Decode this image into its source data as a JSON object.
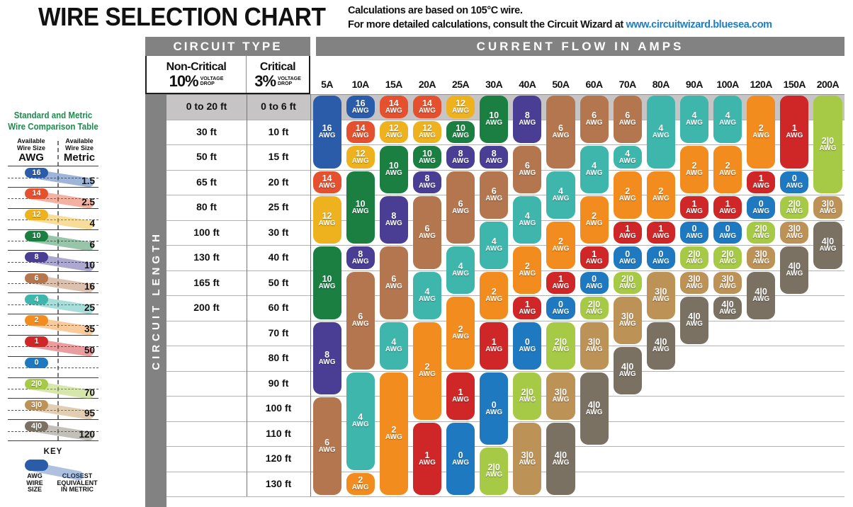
{
  "header": {
    "title": "WIRE SELECTION CHART",
    "note_line1": "Calculations are based on 105°C wire.",
    "note_line2": "For more detailed calculations, consult the Circuit Wizard at",
    "link": "www.circuitwizard.bluesea.com"
  },
  "circuit_type": {
    "header": "CIRCUIT TYPE",
    "non_critical": {
      "label": "Non-Critical",
      "pct": "10%",
      "drop": "VOLTAGE\nDROP"
    },
    "critical": {
      "label": "Critical",
      "pct": "3%",
      "drop": "VOLTAGE\nDROP"
    }
  },
  "current_flow_header": "CURRENT FLOW IN AMPS",
  "circuit_length_label": "CIRCUIT LENGTH",
  "chart_data": {
    "type": "table",
    "title": "WIRE SELECTION CHART",
    "x_header": "CURRENT FLOW IN AMPS",
    "y_header": "CIRCUIT LENGTH",
    "length_rows": [
      {
        "nc": "0 to 20 ft",
        "cr": "0 to 6 ft"
      },
      {
        "nc": "30 ft",
        "cr": "10 ft"
      },
      {
        "nc": "50 ft",
        "cr": "15 ft"
      },
      {
        "nc": "65 ft",
        "cr": "20 ft"
      },
      {
        "nc": "80 ft",
        "cr": "25 ft"
      },
      {
        "nc": "100 ft",
        "cr": "30 ft"
      },
      {
        "nc": "130 ft",
        "cr": "40 ft"
      },
      {
        "nc": "165 ft",
        "cr": "50 ft"
      },
      {
        "nc": "200 ft",
        "cr": "60 ft"
      },
      {
        "nc": "",
        "cr": "70 ft"
      },
      {
        "nc": "",
        "cr": "80 ft"
      },
      {
        "nc": "",
        "cr": "90 ft"
      },
      {
        "nc": "",
        "cr": "100 ft"
      },
      {
        "nc": "",
        "cr": "110 ft"
      },
      {
        "nc": "",
        "cr": "120 ft"
      },
      {
        "nc": "",
        "cr": "130 ft"
      }
    ],
    "columns": [
      {
        "amp": "5A",
        "segments": [
          {
            "awg": "16",
            "span": 3
          },
          {
            "awg": "14",
            "span": 1
          },
          {
            "awg": "12",
            "span": 2
          },
          {
            "awg": "10",
            "span": 3
          },
          {
            "awg": "8",
            "span": 3
          },
          {
            "awg": "6",
            "span": 4
          }
        ]
      },
      {
        "amp": "10A",
        "segments": [
          {
            "awg": "16",
            "span": 1
          },
          {
            "awg": "14",
            "span": 1
          },
          {
            "awg": "12",
            "span": 1
          },
          {
            "awg": "10",
            "span": 3
          },
          {
            "awg": "8",
            "span": 1
          },
          {
            "awg": "6",
            "span": 4
          },
          {
            "awg": "4",
            "span": 4
          },
          {
            "awg": "2",
            "span": 1
          }
        ]
      },
      {
        "amp": "15A",
        "segments": [
          {
            "awg": "14",
            "span": 1
          },
          {
            "awg": "12",
            "span": 1
          },
          {
            "awg": "10",
            "span": 2
          },
          {
            "awg": "8",
            "span": 2
          },
          {
            "awg": "6",
            "span": 3
          },
          {
            "awg": "4",
            "span": 2
          },
          {
            "awg": "2",
            "span": 5
          }
        ]
      },
      {
        "amp": "20A",
        "segments": [
          {
            "awg": "14",
            "span": 1
          },
          {
            "awg": "12",
            "span": 1
          },
          {
            "awg": "10",
            "span": 1
          },
          {
            "awg": "8",
            "span": 1
          },
          {
            "awg": "6",
            "span": 3
          },
          {
            "awg": "4",
            "span": 2
          },
          {
            "awg": "2",
            "span": 4
          },
          {
            "awg": "1",
            "span": 3
          }
        ]
      },
      {
        "amp": "25A",
        "segments": [
          {
            "awg": "12",
            "span": 1
          },
          {
            "awg": "10",
            "span": 1
          },
          {
            "awg": "8",
            "span": 1
          },
          {
            "awg": "6",
            "span": 3
          },
          {
            "awg": "4",
            "span": 2
          },
          {
            "awg": "2",
            "span": 3
          },
          {
            "awg": "1",
            "span": 2
          },
          {
            "awg": "0",
            "span": 3
          }
        ]
      },
      {
        "amp": "30A",
        "segments": [
          {
            "awg": "10",
            "span": 2
          },
          {
            "awg": "8",
            "span": 1
          },
          {
            "awg": "6",
            "span": 2
          },
          {
            "awg": "4",
            "span": 2
          },
          {
            "awg": "2",
            "span": 2
          },
          {
            "awg": "1",
            "span": 2
          },
          {
            "awg": "0",
            "span": 3
          },
          {
            "awg": "2|0",
            "span": 2
          }
        ]
      },
      {
        "amp": "40A",
        "segments": [
          {
            "awg": "8",
            "span": 2
          },
          {
            "awg": "6",
            "span": 2
          },
          {
            "awg": "4",
            "span": 2
          },
          {
            "awg": "2",
            "span": 2
          },
          {
            "awg": "1",
            "span": 1
          },
          {
            "awg": "0",
            "span": 2
          },
          {
            "awg": "2|0",
            "span": 2
          },
          {
            "awg": "3|0",
            "span": 3
          }
        ]
      },
      {
        "amp": "50A",
        "segments": [
          {
            "awg": "6",
            "span": 3
          },
          {
            "awg": "4",
            "span": 2
          },
          {
            "awg": "2",
            "span": 2
          },
          {
            "awg": "1",
            "span": 1
          },
          {
            "awg": "0",
            "span": 1
          },
          {
            "awg": "2|0",
            "span": 2
          },
          {
            "awg": "3|0",
            "span": 2
          },
          {
            "awg": "4|0",
            "span": 3
          }
        ]
      },
      {
        "amp": "60A",
        "segments": [
          {
            "awg": "6",
            "span": 2
          },
          {
            "awg": "4",
            "span": 2
          },
          {
            "awg": "2",
            "span": 2
          },
          {
            "awg": "1",
            "span": 1
          },
          {
            "awg": "0",
            "span": 1
          },
          {
            "awg": "2|0",
            "span": 1
          },
          {
            "awg": "3|0",
            "span": 2
          },
          {
            "awg": "4|0",
            "span": 3
          }
        ]
      },
      {
        "amp": "70A",
        "segments": [
          {
            "awg": "6",
            "span": 2
          },
          {
            "awg": "4",
            "span": 1
          },
          {
            "awg": "2",
            "span": 2
          },
          {
            "awg": "1",
            "span": 1
          },
          {
            "awg": "0",
            "span": 1
          },
          {
            "awg": "2|0",
            "span": 1
          },
          {
            "awg": "3|0",
            "span": 2
          },
          {
            "awg": "4|0",
            "span": 2
          }
        ]
      },
      {
        "amp": "80A",
        "segments": [
          {
            "awg": "4",
            "span": 3
          },
          {
            "awg": "2",
            "span": 2
          },
          {
            "awg": "1",
            "span": 1
          },
          {
            "awg": "0",
            "span": 1
          },
          {
            "awg": "3|0",
            "span": 2
          },
          {
            "awg": "4|0",
            "span": 2
          }
        ]
      },
      {
        "amp": "90A",
        "segments": [
          {
            "awg": "4",
            "span": 2
          },
          {
            "awg": "2",
            "span": 2
          },
          {
            "awg": "1",
            "span": 1
          },
          {
            "awg": "0",
            "span": 1
          },
          {
            "awg": "2|0",
            "span": 1
          },
          {
            "awg": "3|0",
            "span": 1
          },
          {
            "awg": "4|0",
            "span": 2
          }
        ]
      },
      {
        "amp": "100A",
        "segments": [
          {
            "awg": "4",
            "span": 2
          },
          {
            "awg": "2",
            "span": 2
          },
          {
            "awg": "1",
            "span": 1
          },
          {
            "awg": "0",
            "span": 1
          },
          {
            "awg": "2|0",
            "span": 1
          },
          {
            "awg": "3|0",
            "span": 1
          },
          {
            "awg": "4|0",
            "span": 1
          }
        ]
      },
      {
        "amp": "120A",
        "segments": [
          {
            "awg": "2",
            "span": 3
          },
          {
            "awg": "1",
            "span": 1
          },
          {
            "awg": "0",
            "span": 1
          },
          {
            "awg": "2|0",
            "span": 1
          },
          {
            "awg": "3|0",
            "span": 1
          },
          {
            "awg": "4|0",
            "span": 2
          }
        ]
      },
      {
        "amp": "150A",
        "segments": [
          {
            "awg": "1",
            "span": 3
          },
          {
            "awg": "0",
            "span": 1
          },
          {
            "awg": "2|0",
            "span": 1
          },
          {
            "awg": "3|0",
            "span": 1
          },
          {
            "awg": "4|0",
            "span": 2
          }
        ]
      },
      {
        "amp": "200A",
        "segments": [
          {
            "awg": "2|0",
            "span": 4
          },
          {
            "awg": "3|0",
            "span": 1
          },
          {
            "awg": "4|0",
            "span": 2
          }
        ]
      }
    ],
    "awg_colors": {
      "16": "#2b5ca9",
      "14": "#e5512e",
      "12": "#efb21f",
      "10": "#1a7f41",
      "8": "#493d94",
      "6": "#b3764e",
      "4": "#3eb6ab",
      "2": "#f28c1e",
      "1": "#cf2627",
      "0": "#1e79c0",
      "2|0": "#a6ca45",
      "3|0": "#bd9257",
      "4|0": "#7a7163"
    }
  },
  "sidebar": {
    "title_line1": "Standard and Metric",
    "title_line2": "Wire Comparison Table",
    "col_awg": {
      "header": "Available\nWire Size",
      "unit": "AWG"
    },
    "col_metric": {
      "header": "Available\nWire Size",
      "unit": "Metric"
    },
    "entries": [
      {
        "awg": "16",
        "metric": "1.5"
      },
      {
        "awg": "14",
        "metric": "2.5"
      },
      {
        "awg": "12",
        "metric": "4"
      },
      {
        "awg": "10",
        "metric": "6"
      },
      {
        "awg": "8",
        "metric": "10"
      },
      {
        "awg": "6",
        "metric": "16"
      },
      {
        "awg": "4",
        "metric": "25"
      },
      {
        "awg": "2",
        "metric": "35"
      },
      {
        "awg": "1",
        "metric": "50"
      },
      {
        "awg": "0",
        "metric": ""
      },
      {
        "awg": "2|0",
        "metric": "70"
      },
      {
        "awg": "3|0",
        "metric": "95"
      },
      {
        "awg": "4|0",
        "metric": "120"
      }
    ],
    "key": {
      "title": "KEY",
      "pill_label": "AWG\nWIRE\nSIZE",
      "band_label": "CLOSEST\nEQUIVALENT\nIN METRIC"
    }
  },
  "colors": {
    "header_bar_gray": "#828282",
    "row1_band_gray": "#c6c4c4",
    "grid_line": "#b3b1b1",
    "title_green": "#1e8a4d",
    "link_blue": "#1d7fc1",
    "key_blue": "#2b5ca9"
  }
}
